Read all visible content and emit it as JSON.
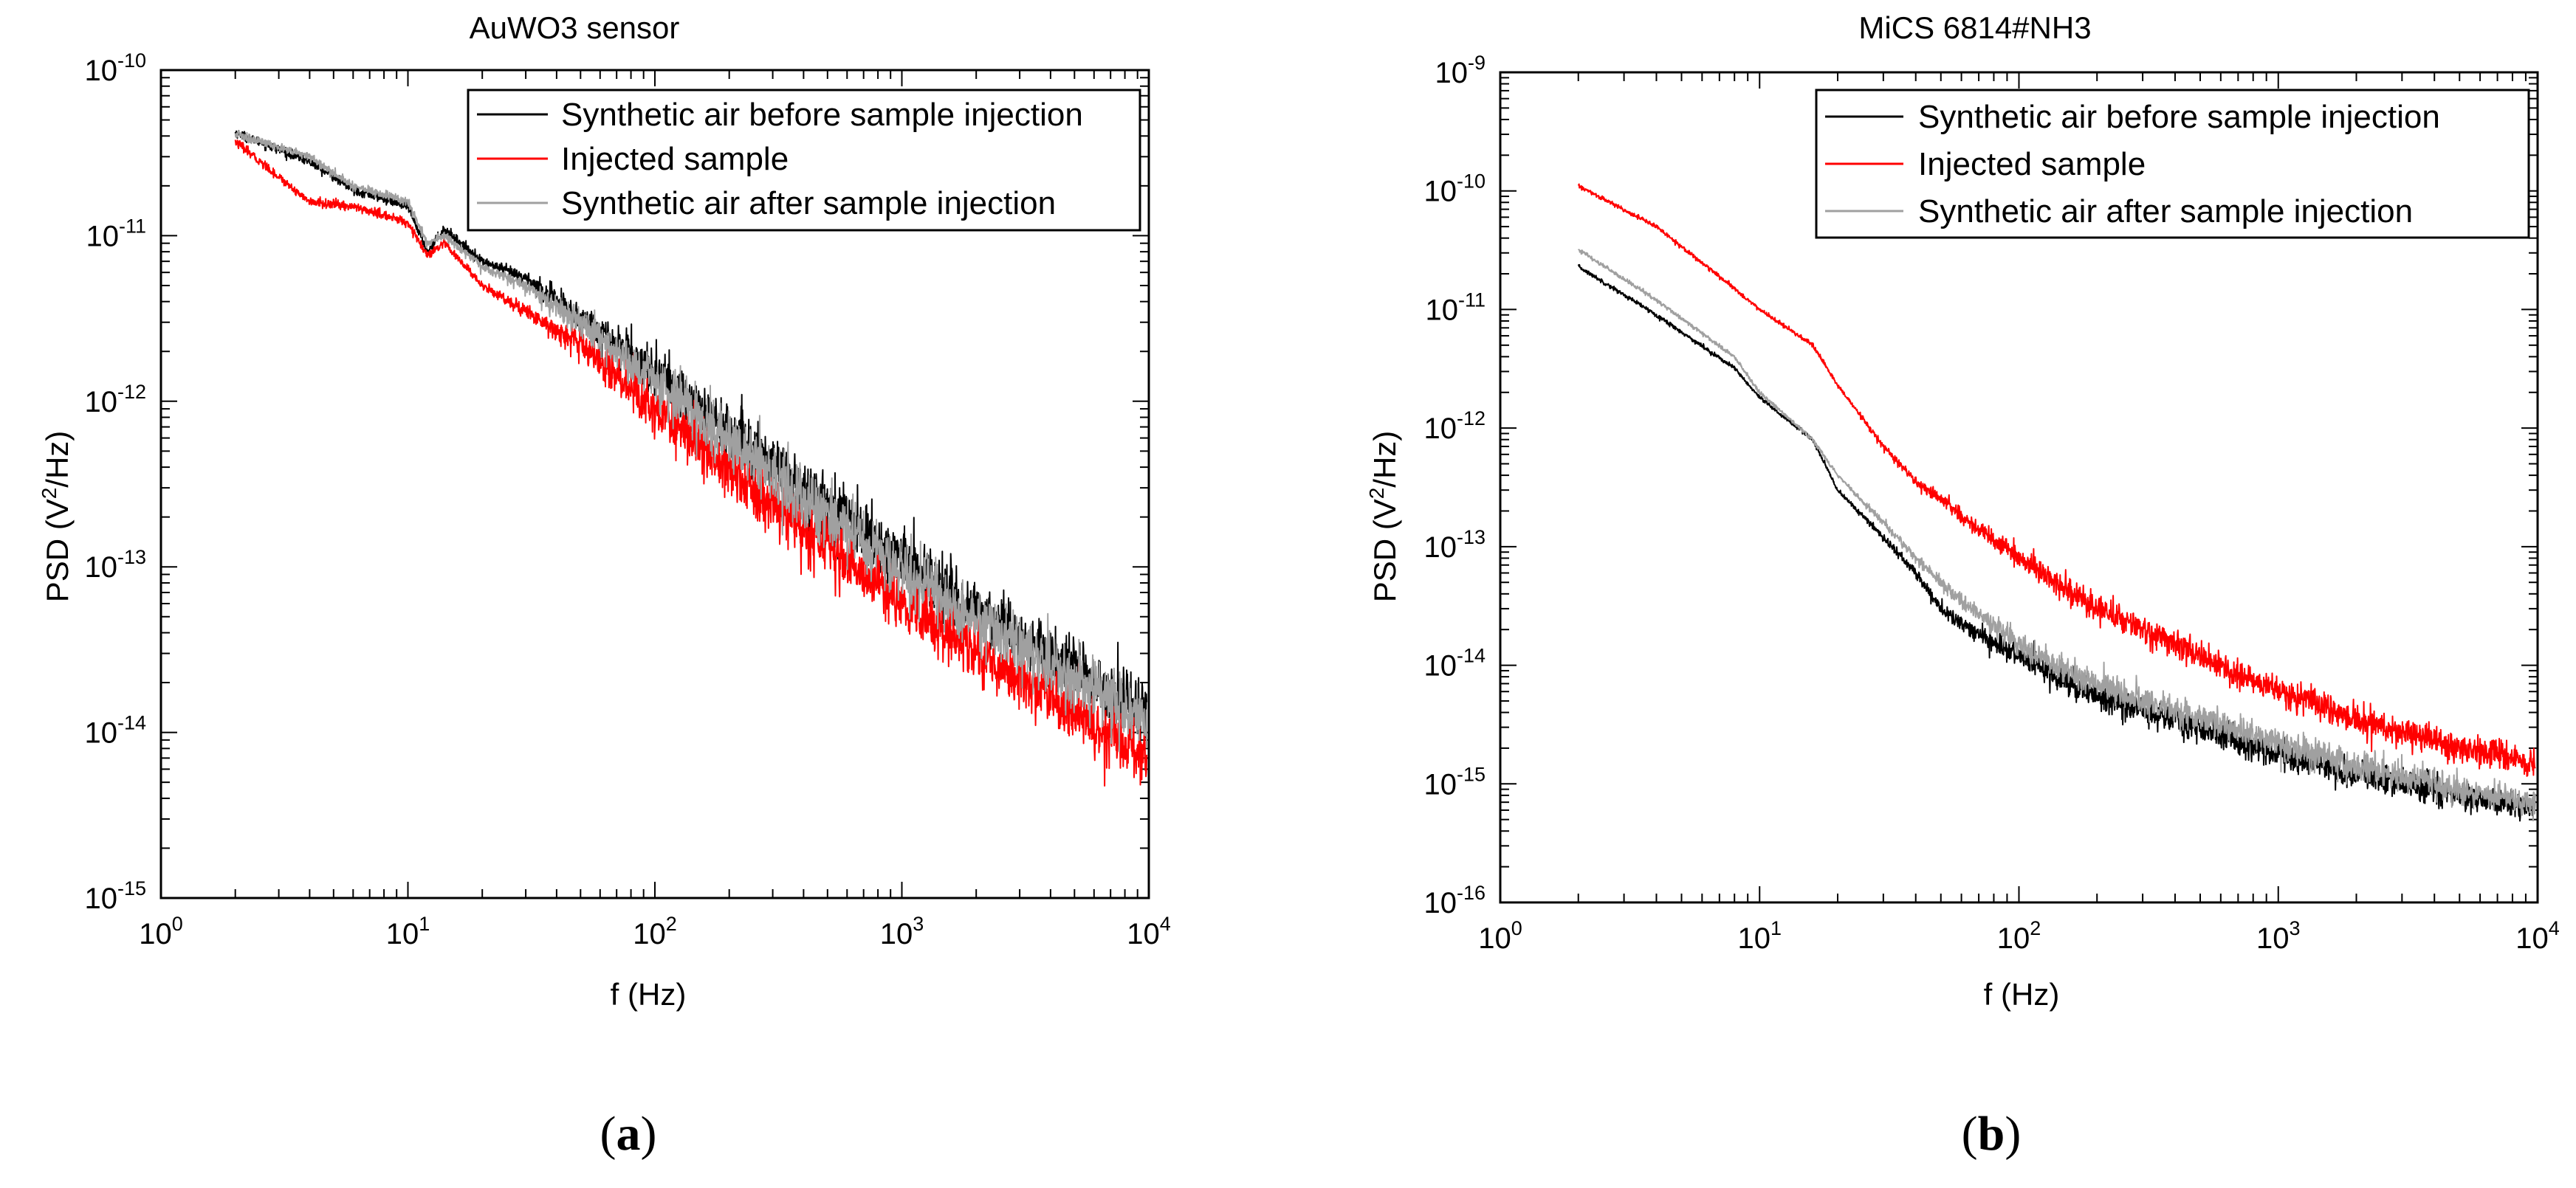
{
  "chart_data": [
    {
      "type": "line",
      "panel": "a",
      "title": "AuWO3 sensor",
      "xlabel": "f (Hz)",
      "ylabel": "PSD (V²/Hz)",
      "xscale": "log",
      "yscale": "log",
      "xlim": [
        1,
        10000
      ],
      "ylim": [
        1e-15,
        1e-10
      ],
      "xticks": [
        {
          "base": "10",
          "exp": "0"
        },
        {
          "base": "10",
          "exp": "1"
        },
        {
          "base": "10",
          "exp": "2"
        },
        {
          "base": "10",
          "exp": "3"
        },
        {
          "base": "10",
          "exp": "4"
        }
      ],
      "yticks": [
        {
          "base": "10",
          "exp": "-15"
        },
        {
          "base": "10",
          "exp": "-14"
        },
        {
          "base": "10",
          "exp": "-13"
        },
        {
          "base": "10",
          "exp": "-12"
        },
        {
          "base": "10",
          "exp": "-11"
        },
        {
          "base": "10",
          "exp": "-10"
        }
      ],
      "legend_position": "top-right",
      "series": [
        {
          "name": "Synthetic air before sample injection",
          "color": "#000000",
          "noise": 0.09,
          "x": [
            2,
            4,
            6,
            10,
            12,
            14,
            20,
            30,
            50,
            100,
            200,
            500,
            1000,
            2000,
            5000,
            9800
          ],
          "y": [
            4.2e-11,
            2.8e-11,
            1.9e-11,
            1.5e-11,
            8e-12,
            1.1e-11,
            7e-12,
            5.5e-12,
            3.2e-12,
            1.5e-12,
            6.5e-13,
            2.3e-13,
            1.1e-13,
            5.5e-14,
            2.4e-14,
            1.3e-14
          ]
        },
        {
          "name": "Injected sample",
          "color": "#ff0000",
          "noise": 0.09,
          "x": [
            2,
            4,
            6,
            10,
            12,
            14,
            20,
            30,
            50,
            100,
            200,
            500,
            1000,
            2000,
            5000,
            9800
          ],
          "y": [
            3.7e-11,
            1.6e-11,
            1.5e-11,
            1.2e-11,
            7.5e-12,
            9e-12,
            5e-12,
            3.5e-12,
            2.2e-12,
            9e-13,
            3.8e-13,
            1.3e-13,
            6.2e-14,
            3e-14,
            1.3e-14,
            7e-15
          ]
        },
        {
          "name": "Synthetic air after sample injection",
          "color": "#a0a0a0",
          "noise": 0.09,
          "x": [
            2,
            4,
            6,
            10,
            12,
            14,
            20,
            30,
            50,
            100,
            200,
            500,
            1000,
            2000,
            5000,
            9800
          ],
          "y": [
            4.1e-11,
            3e-11,
            2e-11,
            1.6e-11,
            9e-12,
            1e-11,
            6.5e-12,
            5e-12,
            3e-12,
            1.3e-12,
            5.8e-13,
            2e-13,
            9.5e-14,
            4.8e-14,
            2.1e-14,
            1.2e-14
          ]
        }
      ]
    },
    {
      "type": "line",
      "panel": "b",
      "title": "MiCS 6814#NH3",
      "xlabel": "f (Hz)",
      "ylabel": "PSD (V²/Hz)",
      "xscale": "log",
      "yscale": "log",
      "xlim": [
        1,
        10000
      ],
      "ylim": [
        1e-16,
        1e-09
      ],
      "xticks": [
        {
          "base": "10",
          "exp": "0"
        },
        {
          "base": "10",
          "exp": "1"
        },
        {
          "base": "10",
          "exp": "2"
        },
        {
          "base": "10",
          "exp": "3"
        },
        {
          "base": "10",
          "exp": "4"
        }
      ],
      "yticks": [
        {
          "base": "10",
          "exp": "-16"
        },
        {
          "base": "10",
          "exp": "-15"
        },
        {
          "base": "10",
          "exp": "-14"
        },
        {
          "base": "10",
          "exp": "-13"
        },
        {
          "base": "10",
          "exp": "-12"
        },
        {
          "base": "10",
          "exp": "-11"
        },
        {
          "base": "10",
          "exp": "-10"
        },
        {
          "base": "10",
          "exp": "-9"
        }
      ],
      "legend_position": "top-right",
      "series": [
        {
          "name": "Synthetic air before sample injection",
          "color": "#000000",
          "noise": 0.06,
          "x": [
            2,
            4,
            8,
            10,
            16,
            20,
            30,
            40,
            50,
            60,
            100,
            200,
            500,
            1000,
            2000,
            5000,
            9800
          ],
          "y": [
            2.3e-11,
            9e-12,
            3.2e-12,
            1.8e-12,
            8e-13,
            3e-13,
            1.2e-13,
            6e-14,
            3e-14,
            2.2e-14,
            1.2e-14,
            5.5e-15,
            3e-15,
            1.8e-15,
            1.2e-15,
            8e-16,
            6e-16
          ]
        },
        {
          "name": "Injected sample",
          "color": "#ff0000",
          "noise": 0.06,
          "x": [
            2,
            4,
            8,
            10,
            16,
            20,
            30,
            40,
            50,
            60,
            100,
            200,
            500,
            1000,
            2000,
            5000,
            9800
          ],
          "y": [
            1.1e-10,
            5e-11,
            1.5e-11,
            1e-11,
            5e-12,
            2.3e-12,
            7e-13,
            3.5e-13,
            2.5e-13,
            1.8e-13,
            8e-14,
            3e-14,
            1.2e-14,
            6e-15,
            3.5e-15,
            2e-15,
            1.5e-15
          ]
        },
        {
          "name": "Synthetic air after sample injection",
          "color": "#a0a0a0",
          "noise": 0.06,
          "x": [
            2,
            4,
            8,
            10,
            16,
            20,
            30,
            40,
            50,
            60,
            100,
            200,
            500,
            1000,
            2000,
            5000,
            9800
          ],
          "y": [
            3.2e-11,
            1.2e-11,
            4e-12,
            2e-12,
            8e-13,
            4e-13,
            1.6e-13,
            8e-14,
            5e-14,
            3.5e-14,
            1.5e-14,
            7e-15,
            3.6e-15,
            2.2e-15,
            1.4e-15,
            9e-16,
            7e-16
          ]
        }
      ]
    }
  ],
  "figure": {
    "panel_labels": [
      {
        "open": "(",
        "letter": "a",
        "close": ")"
      },
      {
        "open": "(",
        "letter": "b",
        "close": ")"
      }
    ]
  }
}
